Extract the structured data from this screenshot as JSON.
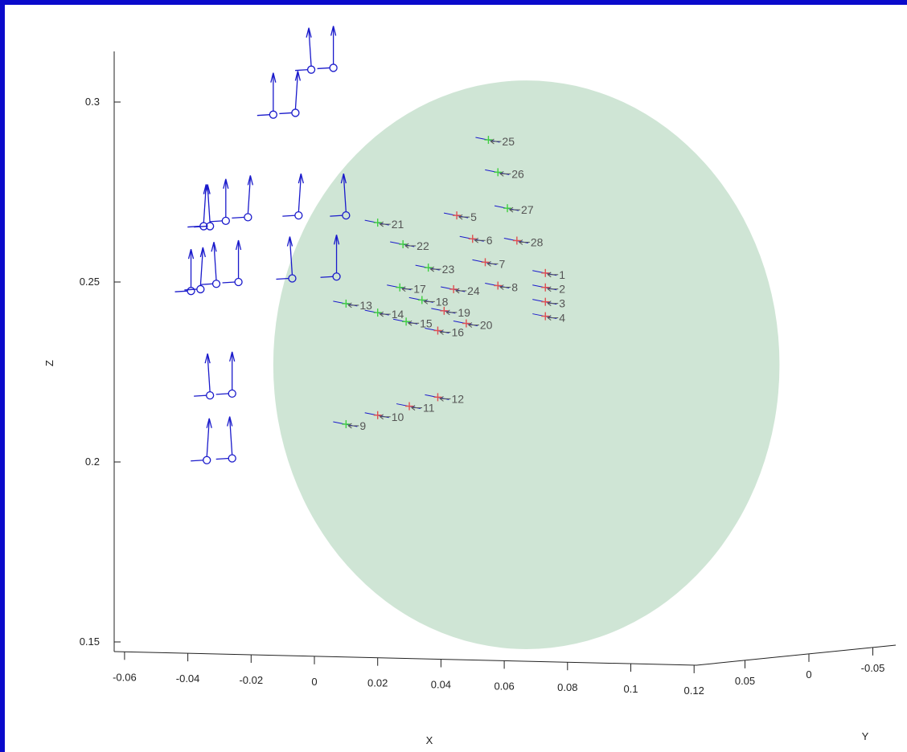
{
  "chart_data": {
    "type": "scatter",
    "title": "",
    "xlabel": "X",
    "ylabel": "Y",
    "zlabel": "Z",
    "colors": {
      "frame": "#0a0acb",
      "sphere": "#a8cfb2",
      "dipole": "#1a1acb",
      "marker_red": "#e05050",
      "marker_green": "#40d040",
      "label": "#555555",
      "axis": "#222222"
    },
    "x_ticks": [
      "-0.06",
      "-0.04",
      "-0.02",
      "0",
      "0.02",
      "0.04",
      "0.06",
      "0.08",
      "0.1",
      "0.12"
    ],
    "y_ticks": [
      "0.05",
      "0",
      "-0.05"
    ],
    "z_ticks": [
      "0.3",
      "0.25",
      "0.2",
      "0.15"
    ],
    "xlim": [
      -0.06,
      0.12
    ],
    "zlim": [
      0.15,
      0.315
    ],
    "sphere": {
      "x_range": [
        -0.013,
        0.147
      ],
      "z_range": [
        0.148,
        0.306
      ]
    },
    "points": [
      {
        "label": "1",
        "x": 0.073,
        "z": 0.2525,
        "color": "red"
      },
      {
        "label": "2",
        "x": 0.073,
        "z": 0.2485,
        "color": "red"
      },
      {
        "label": "3",
        "x": 0.073,
        "z": 0.2445,
        "color": "red"
      },
      {
        "label": "4",
        "x": 0.073,
        "z": 0.2405,
        "color": "red"
      },
      {
        "label": "5",
        "x": 0.045,
        "z": 0.2685,
        "color": "red"
      },
      {
        "label": "6",
        "x": 0.05,
        "z": 0.262,
        "color": "red"
      },
      {
        "label": "7",
        "x": 0.054,
        "z": 0.2555,
        "color": "red"
      },
      {
        "label": "8",
        "x": 0.058,
        "z": 0.249,
        "color": "red"
      },
      {
        "label": "9",
        "x": 0.01,
        "z": 0.2105,
        "color": "green"
      },
      {
        "label": "10",
        "x": 0.02,
        "z": 0.213,
        "color": "red"
      },
      {
        "label": "11",
        "x": 0.03,
        "z": 0.2155,
        "color": "red"
      },
      {
        "label": "12",
        "x": 0.039,
        "z": 0.218,
        "color": "red"
      },
      {
        "label": "13",
        "x": 0.01,
        "z": 0.244,
        "color": "green"
      },
      {
        "label": "14",
        "x": 0.02,
        "z": 0.2415,
        "color": "green"
      },
      {
        "label": "15",
        "x": 0.029,
        "z": 0.239,
        "color": "green"
      },
      {
        "label": "16",
        "x": 0.039,
        "z": 0.2365,
        "color": "red"
      },
      {
        "label": "17",
        "x": 0.027,
        "z": 0.2485,
        "color": "green"
      },
      {
        "label": "18",
        "x": 0.034,
        "z": 0.245,
        "color": "green"
      },
      {
        "label": "19",
        "x": 0.041,
        "z": 0.242,
        "color": "red"
      },
      {
        "label": "20",
        "x": 0.048,
        "z": 0.2385,
        "color": "red"
      },
      {
        "label": "21",
        "x": 0.02,
        "z": 0.2665,
        "color": "green"
      },
      {
        "label": "22",
        "x": 0.028,
        "z": 0.2605,
        "color": "green"
      },
      {
        "label": "23",
        "x": 0.036,
        "z": 0.254,
        "color": "green"
      },
      {
        "label": "24",
        "x": 0.044,
        "z": 0.248,
        "color": "red"
      },
      {
        "label": "25",
        "x": 0.055,
        "z": 0.2895,
        "color": "green"
      },
      {
        "label": "26",
        "x": 0.058,
        "z": 0.2805,
        "color": "green"
      },
      {
        "label": "27",
        "x": 0.061,
        "z": 0.2705,
        "color": "green"
      },
      {
        "label": "28",
        "x": 0.064,
        "z": 0.2615,
        "color": "red"
      }
    ],
    "dipoles": [
      {
        "x": -0.033,
        "z": 0.2185
      },
      {
        "x": -0.026,
        "z": 0.219
      },
      {
        "x": -0.034,
        "z": 0.2005
      },
      {
        "x": -0.026,
        "z": 0.201
      },
      {
        "x": -0.039,
        "z": 0.2475
      },
      {
        "x": -0.036,
        "z": 0.248
      },
      {
        "x": -0.031,
        "z": 0.2495
      },
      {
        "x": -0.024,
        "z": 0.25
      },
      {
        "x": -0.035,
        "z": 0.2655
      },
      {
        "x": -0.033,
        "z": 0.2655
      },
      {
        "x": -0.028,
        "z": 0.267
      },
      {
        "x": -0.021,
        "z": 0.268
      },
      {
        "x": -0.007,
        "z": 0.251
      },
      {
        "x": 0.007,
        "z": 0.2515
      },
      {
        "x": -0.005,
        "z": 0.2685
      },
      {
        "x": 0.01,
        "z": 0.2685
      },
      {
        "x": -0.013,
        "z": 0.2965
      },
      {
        "x": -0.006,
        "z": 0.297
      },
      {
        "x": -0.001,
        "z": 0.309
      },
      {
        "x": 0.006,
        "z": 0.3095
      }
    ]
  }
}
